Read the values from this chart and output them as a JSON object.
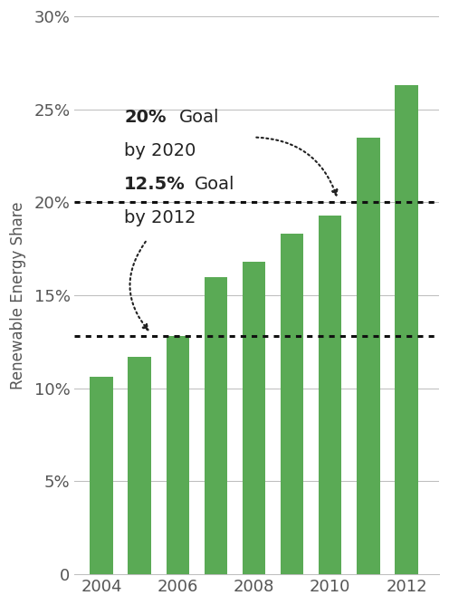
{
  "years": [
    2004,
    2005,
    2006,
    2007,
    2008,
    2009,
    2010,
    2011,
    2012
  ],
  "values": [
    10.6,
    11.7,
    12.8,
    16.0,
    16.8,
    18.3,
    19.3,
    23.5,
    26.3
  ],
  "bar_color": "#5aaa55",
  "ylabel": "Renewable Energy Share",
  "ylim": [
    0,
    30
  ],
  "yticks": [
    0,
    5,
    10,
    15,
    20,
    25,
    30
  ],
  "ytick_labels": [
    "0",
    "5%",
    "10%",
    "15%",
    "20%",
    "25%",
    "30%"
  ],
  "xtick_labels": [
    "2004",
    "2006",
    "2008",
    "2010",
    "2012"
  ],
  "goal1_y": 12.8,
  "goal2_y": 20.0,
  "background_color": "#ffffff",
  "grid_color": "#bbbbbb",
  "tick_color": "#555555",
  "dotted_line_color": "#111111",
  "annotation_color": "#222222",
  "bar_width": 0.6,
  "xlim_left": 2003.3,
  "xlim_right": 2012.85
}
